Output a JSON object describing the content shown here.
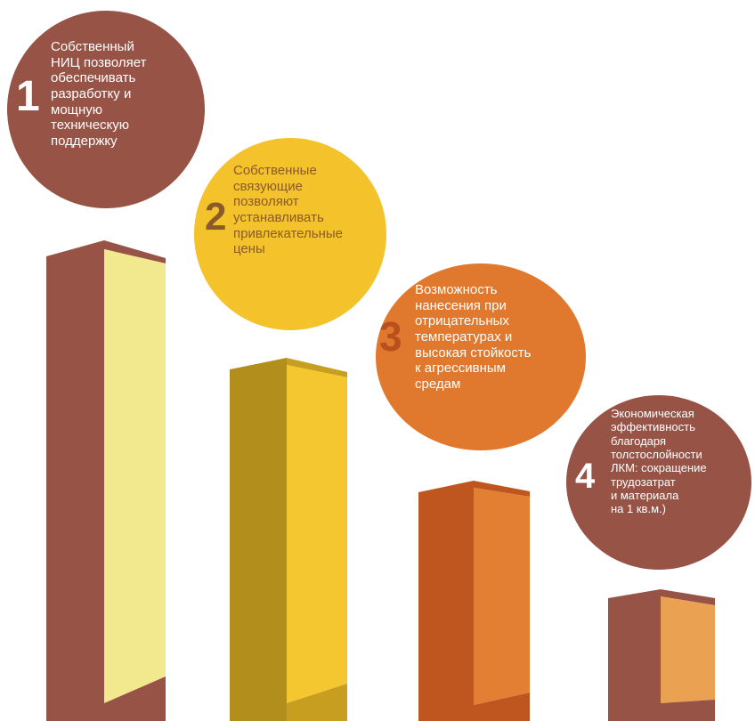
{
  "items": [
    {
      "number": "1",
      "text": "Собственный\nНИЦ позволяет\nобеспечивать\nразработку и\nмощную\nтехническую\nподдержку",
      "circle_color": "#965346",
      "text_color": "#ffffff",
      "number_color": "#ffffff",
      "pillar_front": "#f2e98e",
      "pillar_side": "#965346",
      "pillar_cap": "#965346"
    },
    {
      "number": "2",
      "text": "Собственные\nсвязующие\nпозволяют\nустанавливать\nпривлекательные\nцены",
      "circle_color": "#f4c22b",
      "text_color": "#8a5a2b",
      "number_color": "#8a5a2b",
      "pillar_front": "#f4c730",
      "pillar_side": "#b28e1c",
      "pillar_cap": "#c79e1f"
    },
    {
      "number": "3",
      "text": "Возможность\nнанесения при\nотрицательных\nтемпературах и\nвысокая стойкость\nк агрессивным\nсредам",
      "circle_color": "#e0782e",
      "text_color": "#ffffff",
      "number_color": "#b8501e",
      "pillar_front": "#e27f32",
      "pillar_side": "#c0561f",
      "pillar_cap": "#c0561f"
    },
    {
      "number": "4",
      "text": "Экономическая\nэффективность\nблагодаря\nтолстослойности\nЛКМ: сокращение\nтрудозатрат\nи материала\nна 1 кв.м.)",
      "circle_color": "#965346",
      "text_color": "#ffffff",
      "number_color": "#ffffff",
      "pillar_front": "#eaa151",
      "pillar_side": "#965346",
      "pillar_cap": "#965346"
    }
  ]
}
